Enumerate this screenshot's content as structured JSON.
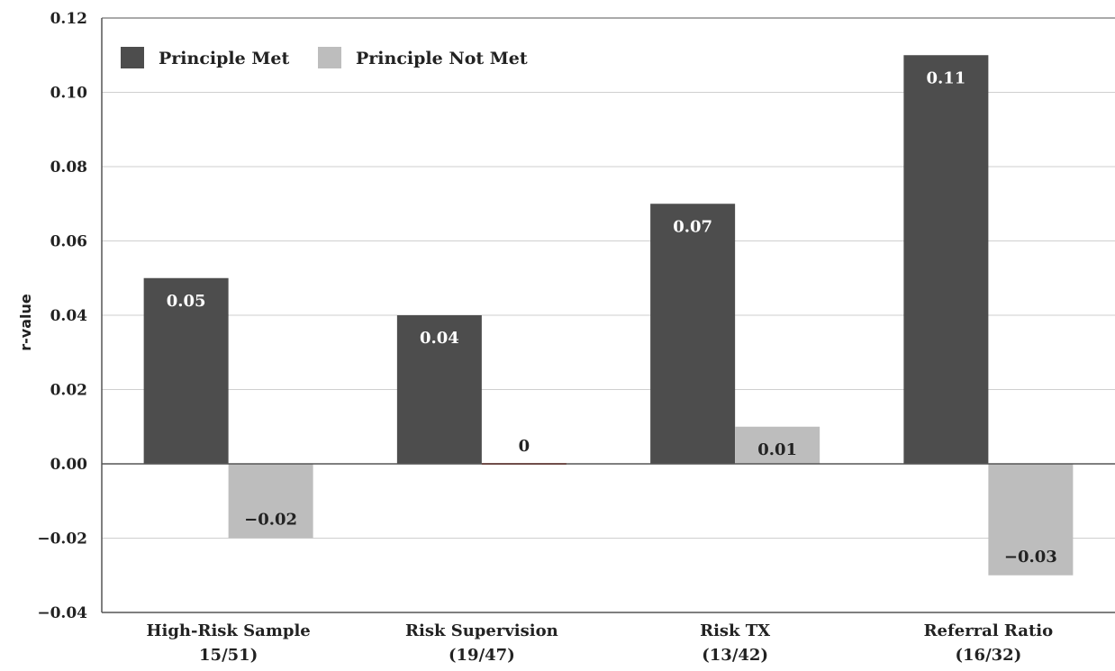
{
  "chart_data": {
    "type": "bar",
    "title": "",
    "xlabel": "",
    "ylabel": "r-value",
    "ylim": [
      -0.04,
      0.12
    ],
    "yticks": [
      "0.12",
      "0.10",
      "0.08",
      "0.06",
      "0.04",
      "0.02",
      "0.00",
      "−0.02",
      "−0.04"
    ],
    "ytick_values": [
      0.12,
      0.1,
      0.08,
      0.06,
      0.04,
      0.02,
      0.0,
      -0.02,
      -0.04
    ],
    "grid": true,
    "legend_position": "top-left",
    "categories": [
      [
        "High-Risk Sample",
        "15/51)"
      ],
      [
        "Risk Supervision",
        "(19/47)"
      ],
      [
        "Risk TX",
        "(13/42)"
      ],
      [
        "Referral Ratio",
        "(16/32)"
      ]
    ],
    "series": [
      {
        "name": "Principle Met",
        "color": "#4d4d4d",
        "label_color": "#ffffff",
        "values": [
          0.05,
          0.04,
          0.07,
          0.11
        ],
        "labels": [
          "0.05",
          "0.04",
          "0.07",
          "0.11"
        ]
      },
      {
        "name": "Principle Not Met",
        "color": "#bdbdbd",
        "label_color": "#222222",
        "values": [
          -0.02,
          0,
          0.01,
          -0.03
        ],
        "labels": [
          "−0.02",
          "0",
          "0.01",
          "−0.03"
        ]
      }
    ],
    "zero_line_color": "#555555",
    "grid_color": "#cfcfcf",
    "zero_marker_color": "#c0392b"
  }
}
